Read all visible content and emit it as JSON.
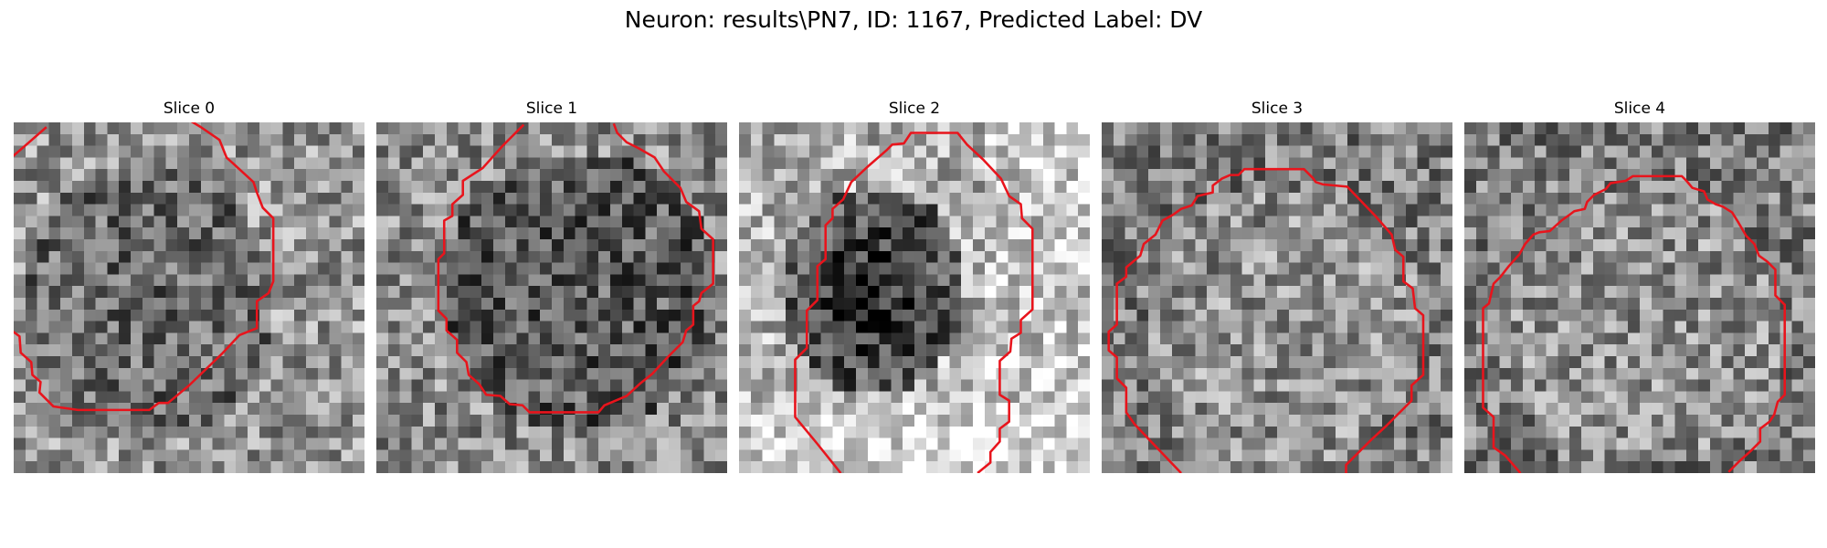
{
  "figure": {
    "title": "Neuron: results\\PN7, ID: 1167, Predicted Label: DV"
  },
  "contour_color": "#e8141c",
  "slices": [
    {
      "title": "Slice 0",
      "seed": 11,
      "style": 0
    },
    {
      "title": "Slice 1",
      "seed": 23,
      "style": 1
    },
    {
      "title": "Slice 2",
      "seed": 37,
      "style": 2
    },
    {
      "title": "Slice 3",
      "seed": 51,
      "style": 3
    },
    {
      "title": "Slice 4",
      "seed": 67,
      "style": 3
    }
  ]
}
